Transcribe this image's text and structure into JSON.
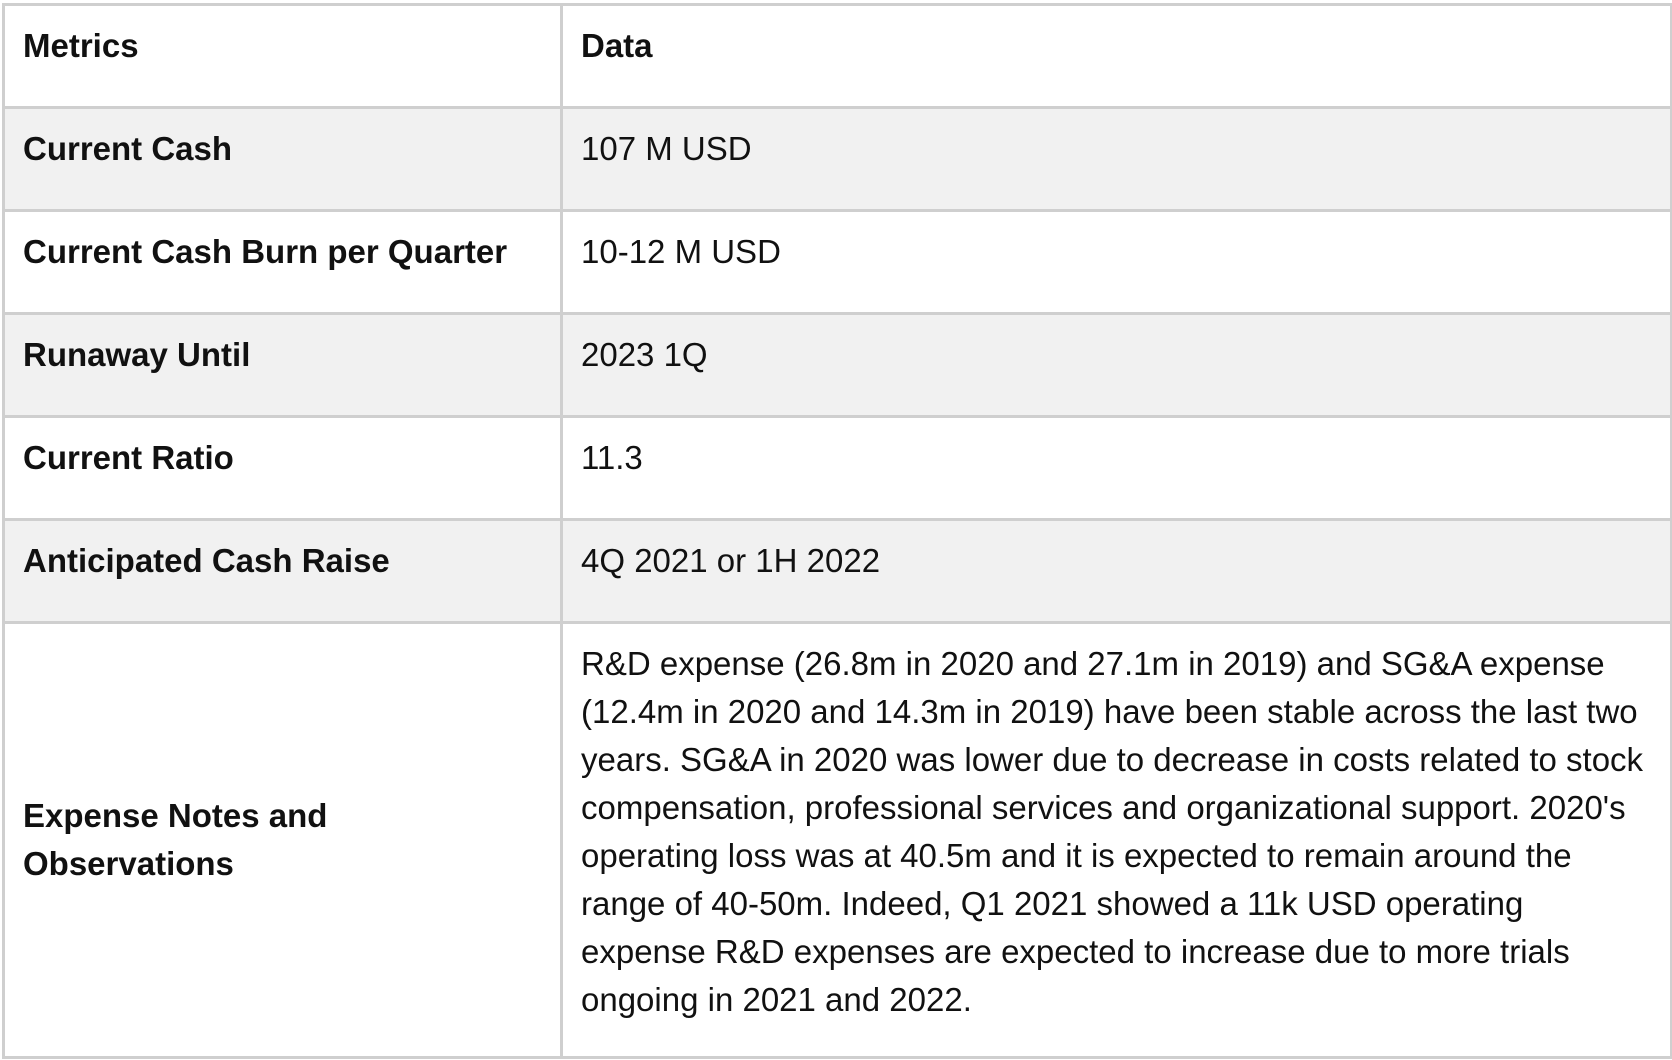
{
  "table": {
    "headers": {
      "metric": "Metrics",
      "data": "Data"
    },
    "rows": [
      {
        "metric": "Current Cash",
        "data": "107 M USD"
      },
      {
        "metric": "Current Cash Burn per Quarter",
        "data": "10-12 M USD"
      },
      {
        "metric": "Runaway Until",
        "data": "2023 1Q"
      },
      {
        "metric": "Current Ratio",
        "data": "11.3"
      },
      {
        "metric": "Anticipated Cash Raise",
        "data": "4Q 2021 or 1H 2022"
      },
      {
        "metric": "Expense Notes and Observations",
        "data": "R&D expense (26.8m in 2020 and 27.1m in 2019) and SG&A expense (12.4m in 2020 and 14.3m in 2019) have been stable across the last two years. SG&A in 2020 was lower due to decrease in costs related to stock compensation, professional services and organizational support. 2020's operating loss was at 40.5m and it is expected to remain around the range of 40-50m. Indeed, Q1 2021 showed a 11k USD operating expense R&D expenses are expected to increase due to more trials ongoing in 2021 and 2022."
      }
    ]
  }
}
